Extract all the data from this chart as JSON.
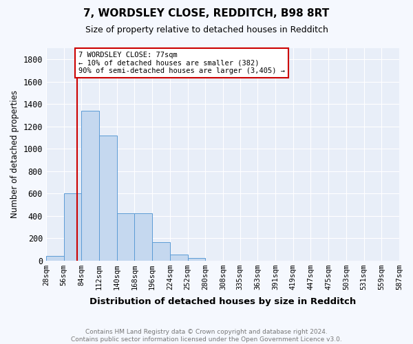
{
  "title": "7, WORDSLEY CLOSE, REDDITCH, B98 8RT",
  "subtitle": "Size of property relative to detached houses in Redditch",
  "xlabel": "Distribution of detached houses by size in Redditch",
  "ylabel": "Number of detached properties",
  "bar_color": "#c5d8ef",
  "bar_edge_color": "#5b9bd5",
  "background_color": "#e8eef8",
  "grid_color": "#ffffff",
  "fig_background_color": "#f5f8fe",
  "bin_edges": [
    28,
    56,
    84,
    112,
    140,
    168,
    196,
    224,
    252,
    280,
    308,
    335,
    363,
    391,
    419,
    447,
    475,
    503,
    531,
    559,
    587
  ],
  "bar_heights": [
    40,
    600,
    1340,
    1120,
    420,
    420,
    165,
    55,
    20,
    0,
    0,
    0,
    0,
    0,
    0,
    0,
    0,
    0,
    0,
    0
  ],
  "red_line_x": 77,
  "annotation_text": "7 WORDSLEY CLOSE: 77sqm\n← 10% of detached houses are smaller (382)\n90% of semi-detached houses are larger (3,405) →",
  "annotation_box_color": "#ffffff",
  "annotation_border_color": "#cc0000",
  "ylim": [
    0,
    1900
  ],
  "yticks": [
    0,
    200,
    400,
    600,
    800,
    1000,
    1200,
    1400,
    1600,
    1800
  ],
  "footer_text": "Contains HM Land Registry data © Crown copyright and database right 2024.\nContains public sector information licensed under the Open Government Licence v3.0.",
  "tick_labels": [
    "28sqm",
    "56sqm",
    "84sqm",
    "112sqm",
    "140sqm",
    "168sqm",
    "196sqm",
    "224sqm",
    "252sqm",
    "280sqm",
    "308sqm",
    "335sqm",
    "363sqm",
    "391sqm",
    "419sqm",
    "447sqm",
    "475sqm",
    "503sqm",
    "531sqm",
    "559sqm",
    "587sqm"
  ]
}
